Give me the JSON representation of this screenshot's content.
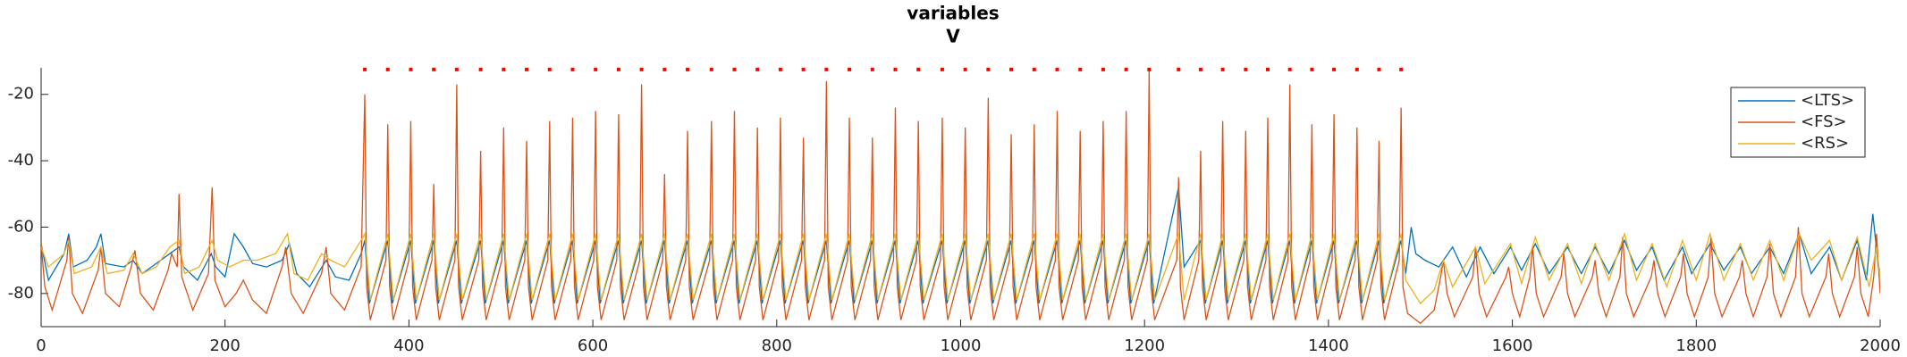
{
  "chart_data": {
    "type": "line",
    "title": "variables",
    "subtitle": "V",
    "xlim": [
      0,
      2000
    ],
    "xticks": [
      0,
      200,
      400,
      600,
      800,
      1000,
      1200,
      1400,
      1600,
      1800,
      2000
    ],
    "ylim": [
      -90,
      -12
    ],
    "yticks": [
      -80,
      -60,
      -40,
      -20
    ],
    "legend": "northeast",
    "series": [
      {
        "name": "<LTS>",
        "color": "#0072bd",
        "x": [
          0,
          8,
          25,
          30,
          35,
          50,
          60,
          65,
          70,
          90,
          100,
          110,
          125,
          140,
          150,
          155,
          170,
          185,
          190,
          200,
          210,
          220,
          230,
          245,
          262,
          270,
          278,
          292,
          310,
          320,
          335,
          348,
          352,
          357,
          377,
          382,
          402,
          407,
          427,
          432,
          452,
          457,
          478,
          483,
          503,
          508,
          528,
          533,
          553,
          558,
          578,
          583,
          603,
          608,
          628,
          633,
          653,
          658,
          678,
          683,
          703,
          708,
          729,
          734,
          754,
          759,
          779,
          784,
          804,
          809,
          829,
          834,
          854,
          859,
          879,
          884,
          904,
          909,
          929,
          934,
          954,
          959,
          980,
          985,
          1005,
          1010,
          1030,
          1035,
          1055,
          1060,
          1080,
          1085,
          1105,
          1110,
          1130,
          1135,
          1155,
          1160,
          1180,
          1185,
          1205,
          1210,
          1237,
          1243,
          1261,
          1266,
          1285,
          1290,
          1310,
          1315,
          1334,
          1339,
          1358,
          1363,
          1382,
          1387,
          1406,
          1411,
          1431,
          1436,
          1455,
          1460,
          1479,
          1484,
          1490,
          1495,
          1505,
          1520,
          1535,
          1550,
          1565,
          1580,
          1598,
          1610,
          1625,
          1640,
          1660,
          1675,
          1690,
          1705,
          1722,
          1735,
          1752,
          1765,
          1785,
          1795,
          1815,
          1830,
          1848,
          1860,
          1880,
          1895,
          1912,
          1925,
          1945,
          1958,
          1975,
          1985,
          1992,
          1998,
          2000
        ],
        "values": [
          -65,
          -76,
          -68,
          -62,
          -72,
          -70,
          -66,
          -62,
          -71,
          -72,
          -70,
          -74,
          -71,
          -68,
          -66,
          -72,
          -76,
          -68,
          -72,
          -75,
          -62,
          -66,
          -71,
          -72,
          -70,
          -65,
          -74,
          -78,
          -70,
          -75,
          -76,
          -68,
          -64,
          -83,
          -64,
          -83,
          -64,
          -83,
          -64,
          -83,
          -64,
          -83,
          -64,
          -83,
          -64,
          -83,
          -64,
          -83,
          -64,
          -83,
          -64,
          -83,
          -64,
          -83,
          -64,
          -83,
          -64,
          -83,
          -64,
          -83,
          -64,
          -83,
          -64,
          -83,
          -64,
          -83,
          -64,
          -83,
          -64,
          -83,
          -64,
          -83,
          -64,
          -83,
          -64,
          -83,
          -64,
          -83,
          -64,
          -83,
          -64,
          -83,
          -64,
          -83,
          -64,
          -83,
          -64,
          -83,
          -64,
          -83,
          -64,
          -83,
          -64,
          -83,
          -64,
          -83,
          -64,
          -83,
          -64,
          -83,
          -64,
          -83,
          -48,
          -72,
          -64,
          -83,
          -64,
          -83,
          -64,
          -83,
          -64,
          -83,
          -64,
          -83,
          -64,
          -83,
          -64,
          -83,
          -64,
          -83,
          -64,
          -83,
          -64,
          -74,
          -60,
          -68,
          -70,
          -72,
          -66,
          -75,
          -66,
          -74,
          -66,
          -73,
          -65,
          -74,
          -66,
          -74,
          -66,
          -74,
          -64,
          -73,
          -66,
          -76,
          -66,
          -74,
          -65,
          -73,
          -66,
          -74,
          -66,
          -74,
          -62,
          -74,
          -66,
          -76,
          -64,
          -76,
          -56,
          -72,
          -73
        ]
      },
      {
        "name": "<FS>",
        "color": "#d95319",
        "x": [
          0,
          4,
          12,
          28,
          30,
          34,
          45,
          62,
          65,
          70,
          85,
          98,
          102,
          108,
          122,
          138,
          142,
          148,
          150,
          153,
          165,
          182,
          186,
          189,
          200,
          212,
          220,
          230,
          245,
          262,
          266,
          272,
          285,
          305,
          310,
          315,
          330,
          348,
          352,
          354,
          358,
          375,
          377,
          379,
          383,
          400,
          402,
          404,
          408,
          425,
          427,
          429,
          433,
          450,
          452,
          454,
          458,
          476,
          478,
          480,
          484,
          501,
          503,
          505,
          509,
          526,
          528,
          530,
          534,
          551,
          553,
          555,
          559,
          576,
          578,
          580,
          584,
          601,
          603,
          605,
          609,
          626,
          628,
          630,
          634,
          651,
          653,
          655,
          659,
          676,
          678,
          680,
          684,
          701,
          703,
          705,
          709,
          727,
          729,
          731,
          735,
          752,
          754,
          756,
          760,
          777,
          779,
          781,
          785,
          802,
          804,
          806,
          810,
          827,
          829,
          831,
          835,
          852,
          854,
          856,
          860,
          877,
          879,
          881,
          885,
          902,
          904,
          906,
          910,
          927,
          929,
          931,
          935,
          952,
          954,
          956,
          960,
          978,
          980,
          982,
          986,
          1003,
          1005,
          1007,
          1011,
          1028,
          1030,
          1032,
          1036,
          1053,
          1055,
          1057,
          1061,
          1078,
          1080,
          1082,
          1086,
          1103,
          1105,
          1107,
          1111,
          1128,
          1130,
          1132,
          1136,
          1153,
          1155,
          1157,
          1161,
          1178,
          1180,
          1182,
          1186,
          1203,
          1205,
          1207,
          1211,
          1235,
          1237,
          1239,
          1243,
          1259,
          1261,
          1263,
          1267,
          1283,
          1285,
          1287,
          1291,
          1308,
          1310,
          1312,
          1316,
          1332,
          1334,
          1336,
          1340,
          1356,
          1358,
          1360,
          1364,
          1380,
          1382,
          1384,
          1388,
          1404,
          1406,
          1408,
          1412,
          1429,
          1431,
          1433,
          1437,
          1453,
          1455,
          1457,
          1461,
          1477,
          1479,
          1481,
          1486,
          1500,
          1515,
          1522,
          1525,
          1529,
          1537,
          1557,
          1560,
          1564,
          1572,
          1593,
          1596,
          1600,
          1608,
          1619,
          1622,
          1626,
          1634,
          1653,
          1656,
          1660,
          1668,
          1687,
          1690,
          1694,
          1702,
          1717,
          1720,
          1724,
          1732,
          1751,
          1754,
          1758,
          1766,
          1783,
          1786,
          1790,
          1798,
          1813,
          1816,
          1820,
          1828,
          1847,
          1850,
          1854,
          1862,
          1877,
          1880,
          1884,
          1892,
          1908,
          1911,
          1915,
          1923,
          1941,
          1944,
          1948,
          1956,
          1972,
          1975,
          1979,
          1987,
          1993,
          1996,
          2000
        ],
        "values": [
          -65,
          -78,
          -85,
          -70,
          -63,
          -80,
          -86,
          -73,
          -66,
          -80,
          -84,
          -72,
          -67,
          -80,
          -85,
          -73,
          -68,
          -72,
          -50,
          -75,
          -85,
          -74,
          -48,
          -76,
          -84,
          -80,
          -76,
          -82,
          -86,
          -72,
          -66,
          -80,
          -86,
          -74,
          -66,
          -80,
          -85,
          -72,
          -20,
          -78,
          -88,
          -70,
          -29,
          -78,
          -88,
          -70,
          -28,
          -78,
          -88,
          -70,
          -47,
          -78,
          -88,
          -70,
          -17,
          -78,
          -88,
          -70,
          -37,
          -78,
          -88,
          -70,
          -30,
          -78,
          -88,
          -70,
          -34,
          -78,
          -88,
          -70,
          -28,
          -78,
          -88,
          -70,
          -27,
          -78,
          -88,
          -70,
          -25,
          -78,
          -88,
          -70,
          -26,
          -78,
          -88,
          -70,
          -17,
          -78,
          -88,
          -70,
          -44,
          -78,
          -88,
          -70,
          -31,
          -78,
          -88,
          -70,
          -28,
          -78,
          -88,
          -70,
          -25,
          -78,
          -88,
          -70,
          -30,
          -78,
          -88,
          -70,
          -27,
          -78,
          -88,
          -70,
          -33,
          -78,
          -88,
          -70,
          -16,
          -78,
          -88,
          -70,
          -27,
          -78,
          -88,
          -70,
          -33,
          -78,
          -88,
          -70,
          -24,
          -78,
          -88,
          -70,
          -28,
          -78,
          -88,
          -70,
          -27,
          -78,
          -88,
          -70,
          -30,
          -78,
          -88,
          -70,
          -21,
          -78,
          -88,
          -70,
          -32,
          -78,
          -88,
          -70,
          -29,
          -78,
          -88,
          -70,
          -25,
          -78,
          -88,
          -70,
          -31,
          -78,
          -88,
          -70,
          -28,
          -78,
          -88,
          -70,
          -25,
          -78,
          -88,
          -70,
          -13,
          -78,
          -88,
          -70,
          -45,
          -78,
          -88,
          -70,
          -37,
          -78,
          -88,
          -70,
          -28,
          -78,
          -88,
          -70,
          -31,
          -78,
          -88,
          -70,
          -27,
          -78,
          -88,
          -70,
          -17,
          -78,
          -88,
          -70,
          -29,
          -78,
          -88,
          -70,
          -26,
          -78,
          -88,
          -70,
          -30,
          -78,
          -88,
          -70,
          -34,
          -78,
          -88,
          -70,
          -24,
          -78,
          -86,
          -89,
          -85,
          -75,
          -70,
          -80,
          -87,
          -75,
          -66,
          -80,
          -87,
          -75,
          -72,
          -80,
          -87,
          -75,
          -66,
          -80,
          -87,
          -75,
          -68,
          -80,
          -87,
          -75,
          -70,
          -80,
          -87,
          -75,
          -63,
          -80,
          -87,
          -75,
          -70,
          -80,
          -87,
          -75,
          -68,
          -80,
          -87,
          -75,
          -63,
          -80,
          -87,
          -75,
          -70,
          -80,
          -87,
          -75,
          -65,
          -80,
          -87,
          -75,
          -60,
          -80,
          -87,
          -75,
          -68,
          -80,
          -87,
          -75,
          -66,
          -80,
          -87,
          -75,
          -62,
          -80
        ]
      },
      {
        "name": "<RS>",
        "color": "#edb120",
        "x": [
          0,
          8,
          25,
          30,
          36,
          55,
          65,
          72,
          90,
          100,
          110,
          125,
          140,
          150,
          156,
          172,
          186,
          192,
          205,
          220,
          235,
          255,
          268,
          275,
          290,
          305,
          315,
          330,
          348,
          352,
          358,
          377,
          383,
          402,
          408,
          427,
          433,
          452,
          458,
          478,
          484,
          503,
          509,
          528,
          534,
          553,
          559,
          578,
          584,
          603,
          609,
          628,
          634,
          653,
          659,
          678,
          684,
          703,
          709,
          729,
          735,
          754,
          760,
          779,
          785,
          804,
          810,
          829,
          835,
          854,
          860,
          879,
          885,
          904,
          910,
          929,
          935,
          954,
          960,
          980,
          986,
          1005,
          1011,
          1030,
          1036,
          1055,
          1061,
          1080,
          1086,
          1105,
          1111,
          1130,
          1136,
          1155,
          1161,
          1180,
          1186,
          1205,
          1211,
          1237,
          1243,
          1261,
          1267,
          1285,
          1291,
          1310,
          1316,
          1334,
          1340,
          1358,
          1364,
          1382,
          1388,
          1406,
          1412,
          1431,
          1437,
          1455,
          1461,
          1479,
          1484,
          1500,
          1515,
          1525,
          1535,
          1560,
          1570,
          1598,
          1610,
          1625,
          1640,
          1660,
          1675,
          1690,
          1705,
          1722,
          1735,
          1752,
          1768,
          1785,
          1800,
          1815,
          1830,
          1848,
          1862,
          1880,
          1895,
          1912,
          1925,
          1945,
          1958,
          1975,
          1988,
          1996,
          2000
        ],
        "values": [
          -66,
          -72,
          -68,
          -64,
          -74,
          -72,
          -66,
          -74,
          -73,
          -68,
          -74,
          -72,
          -66,
          -64,
          -74,
          -72,
          -64,
          -70,
          -72,
          -70,
          -70,
          -68,
          -62,
          -74,
          -76,
          -68,
          -70,
          -72,
          -64,
          -62,
          -82,
          -62,
          -82,
          -62,
          -82,
          -62,
          -82,
          -62,
          -82,
          -62,
          -82,
          -62,
          -82,
          -62,
          -82,
          -62,
          -82,
          -62,
          -82,
          -62,
          -82,
          -62,
          -82,
          -62,
          -82,
          -62,
          -82,
          -62,
          -82,
          -62,
          -82,
          -62,
          -82,
          -62,
          -82,
          -62,
          -82,
          -62,
          -82,
          -62,
          -82,
          -62,
          -82,
          -62,
          -82,
          -62,
          -82,
          -62,
          -82,
          -62,
          -82,
          -62,
          -82,
          -62,
          -82,
          -62,
          -82,
          -62,
          -82,
          -62,
          -82,
          -62,
          -82,
          -62,
          -82,
          -62,
          -82,
          -62,
          -82,
          -62,
          -82,
          -62,
          -82,
          -62,
          -82,
          -62,
          -82,
          -62,
          -82,
          -62,
          -82,
          -62,
          -82,
          -62,
          -82,
          -62,
          -82,
          -62,
          -82,
          -62,
          -76,
          -83,
          -79,
          -70,
          -78,
          -66,
          -77,
          -65,
          -77,
          -63,
          -76,
          -65,
          -77,
          -65,
          -76,
          -62,
          -76,
          -65,
          -78,
          -64,
          -76,
          -62,
          -76,
          -65,
          -76,
          -64,
          -76,
          -62,
          -70,
          -64,
          -76,
          -63,
          -78,
          -66,
          -75
        ]
      }
    ],
    "spikes": {
      "color": "#ff0000",
      "y": -12.5,
      "x": [
        352,
        377,
        402,
        427,
        452,
        478,
        503,
        528,
        553,
        578,
        603,
        628,
        653,
        678,
        703,
        729,
        754,
        779,
        804,
        829,
        854,
        879,
        904,
        929,
        954,
        980,
        1005,
        1030,
        1055,
        1080,
        1105,
        1130,
        1155,
        1180,
        1205,
        1237,
        1261,
        1285,
        1310,
        1334,
        1358,
        1382,
        1406,
        1431,
        1455,
        1479
      ]
    }
  }
}
